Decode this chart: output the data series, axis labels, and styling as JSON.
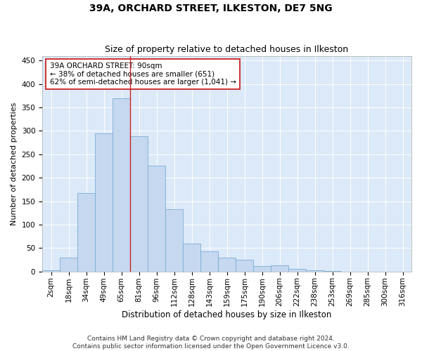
{
  "title": "39A, ORCHARD STREET, ILKESTON, DE7 5NG",
  "subtitle": "Size of property relative to detached houses in Ilkeston",
  "xlabel": "Distribution of detached houses by size in Ilkeston",
  "ylabel": "Number of detached properties",
  "categories": [
    "2sqm",
    "18sqm",
    "34sqm",
    "49sqm",
    "65sqm",
    "81sqm",
    "96sqm",
    "112sqm",
    "128sqm",
    "143sqm",
    "159sqm",
    "175sqm",
    "190sqm",
    "206sqm",
    "222sqm",
    "238sqm",
    "253sqm",
    "269sqm",
    "285sqm",
    "300sqm",
    "316sqm"
  ],
  "values": [
    2,
    29,
    168,
    295,
    370,
    289,
    226,
    133,
    60,
    43,
    29,
    25,
    12,
    13,
    5,
    3,
    1,
    0,
    0,
    0,
    0
  ],
  "bar_color": "#c5d8f0",
  "bar_edge_color": "#7aadd4",
  "vline_x": 4.5,
  "vline_color": "#cc2222",
  "annotation_text": "39A ORCHARD STREET: 90sqm\n← 38% of detached houses are smaller (651)\n62% of semi-detached houses are larger (1,041) →",
  "annotation_box_facecolor": "#ffffff",
  "annotation_box_edgecolor": "#cc2222",
  "ylim": [
    0,
    460
  ],
  "yticks": [
    0,
    50,
    100,
    150,
    200,
    250,
    300,
    350,
    400,
    450
  ],
  "footer_line1": "Contains HM Land Registry data © Crown copyright and database right 2024.",
  "footer_line2": "Contains public sector information licensed under the Open Government Licence v3.0.",
  "bg_color": "#dce9f8",
  "grid_color": "#ffffff",
  "title_fontsize": 10,
  "subtitle_fontsize": 9,
  "xlabel_fontsize": 8.5,
  "ylabel_fontsize": 8,
  "tick_fontsize": 7.5,
  "annotation_fontsize": 7.5,
  "footer_fontsize": 6.5
}
